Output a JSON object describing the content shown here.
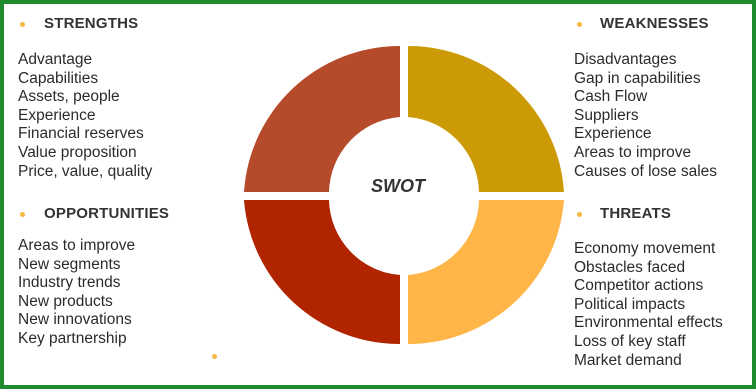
{
  "diagram": {
    "center": "SWOT",
    "quadrants": [
      {
        "key": "strengths",
        "title": "STRENGTHS",
        "color": "#b54b2a",
        "items": [
          "Advantage",
          "Capabilities",
          "Assets, people",
          "Experience",
          "Financial reserves",
          "Value proposition",
          "Price, value, quality"
        ]
      },
      {
        "key": "weaknesses",
        "title": "WEAKNESSES",
        "color": "#cc9a06",
        "items": [
          "Disadvantages",
          "Gap in capabilities",
          "Cash Flow",
          "Suppliers",
          "Experience",
          "Areas to improve",
          "Causes of lose sales"
        ]
      },
      {
        "key": "opportunities",
        "title": "OPPORTUNITIES",
        "color": "#b02400",
        "items": [
          "Areas to improve",
          "New segments",
          "Industry trends",
          "New products",
          "New innovations",
          "Key partnership"
        ]
      },
      {
        "key": "threats",
        "title": "THREATS",
        "color": "#ffb547",
        "items": [
          "Economy movement",
          "Obstacles faced",
          "Competitor actions",
          "Political impacts",
          "Environmental effects",
          "Loss of key staff",
          "Market demand"
        ]
      }
    ],
    "bullet_color": "#f5b942",
    "border_color": "#1f8a2e"
  }
}
